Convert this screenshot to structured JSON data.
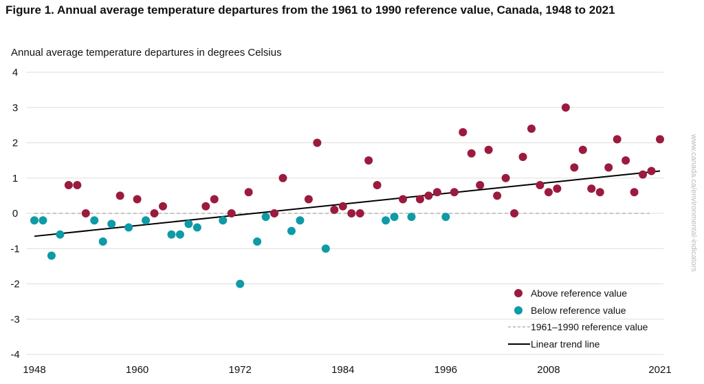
{
  "chart_data": {
    "type": "scatter",
    "title": "Figure 1. Annual average temperature departures from the 1961 to 1990 reference value, Canada, 1948 to 2021",
    "ylabel": "Annual average temperature departures in degrees Celsius",
    "xlabel": "",
    "xlim": [
      1948,
      2021
    ],
    "ylim": [
      -4,
      4
    ],
    "x_ticks": [
      "1948",
      "1960",
      "1972",
      "1984",
      "1996",
      "2008",
      "2021"
    ],
    "y_ticks": [
      "4",
      "3",
      "2",
      "1",
      "0",
      "-1",
      "-2",
      "-3",
      "-4"
    ],
    "grid": "horizontal",
    "legend_placement": "bottom-right",
    "legend": {
      "above": "Above reference value",
      "below": "Below reference value",
      "reference": "1961–1990 reference value",
      "trend": "Linear trend line"
    },
    "colors": {
      "above": "#9b1b3f",
      "below": "#0e9aa7",
      "reference": "#b3b3b3",
      "trend": "#000000",
      "grid": "#dddddd"
    },
    "x": [
      1948,
      1949,
      1950,
      1951,
      1952,
      1953,
      1954,
      1955,
      1956,
      1957,
      1958,
      1959,
      1960,
      1961,
      1962,
      1963,
      1964,
      1965,
      1966,
      1967,
      1968,
      1969,
      1970,
      1971,
      1972,
      1973,
      1974,
      1975,
      1976,
      1977,
      1978,
      1979,
      1980,
      1981,
      1982,
      1983,
      1984,
      1985,
      1986,
      1987,
      1988,
      1989,
      1990,
      1991,
      1992,
      1993,
      1994,
      1995,
      1996,
      1997,
      1998,
      1999,
      2000,
      2001,
      2002,
      2003,
      2004,
      2005,
      2006,
      2007,
      2008,
      2009,
      2010,
      2011,
      2012,
      2013,
      2014,
      2015,
      2016,
      2017,
      2018,
      2019,
      2020,
      2021
    ],
    "y": [
      -0.2,
      -0.2,
      -1.2,
      -0.6,
      0.8,
      0.8,
      0.0,
      -0.2,
      -0.8,
      -0.3,
      0.5,
      -0.4,
      0.4,
      -0.2,
      0.0,
      0.2,
      -0.6,
      -0.6,
      -0.3,
      -0.4,
      0.2,
      0.4,
      -0.2,
      0.0,
      -2.0,
      0.6,
      -0.8,
      -0.1,
      0.0,
      1.0,
      -0.5,
      -0.2,
      0.4,
      2.0,
      -1.0,
      0.1,
      0.2,
      0.0,
      0.0,
      1.5,
      0.8,
      -0.2,
      -0.1,
      0.4,
      -0.1,
      0.4,
      0.5,
      0.6,
      -0.1,
      0.6,
      2.3,
      1.7,
      0.8,
      1.8,
      0.5,
      1.0,
      0.0,
      1.6,
      2.4,
      0.8,
      0.6,
      0.7,
      3.0,
      1.3,
      1.8,
      0.7,
      0.6,
      1.3,
      2.1,
      1.5,
      0.6,
      1.1,
      1.2,
      2.1
    ],
    "reference_value": 0,
    "trend": {
      "start": [
        1948,
        -0.65
      ],
      "end": [
        2021,
        1.2
      ]
    }
  },
  "watermark": "www.canada.ca/environmental-indicators"
}
